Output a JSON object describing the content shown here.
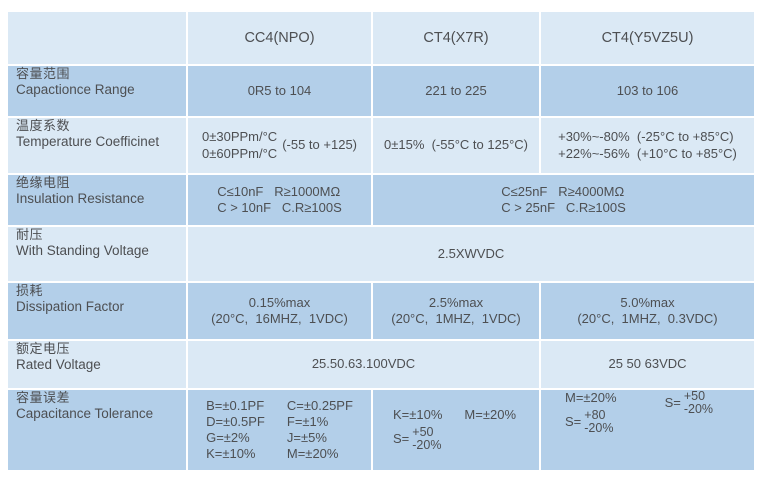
{
  "colors": {
    "row_dark": "#b3cfe9",
    "row_light": "#dbe9f5",
    "text": "#4d4f52",
    "background": "#ffffff"
  },
  "header": {
    "corner": "",
    "cc4": "CC4(NPO)",
    "x7r": "CT4(X7R)",
    "y5v": "CT4(Y5VZ5U)"
  },
  "rows": {
    "capacitance_range": {
      "zh": "容量范围",
      "en": "Capactionce Range",
      "cc4": "0R5 to 104",
      "x7r": "221 to 225",
      "y5v": "103 to 106"
    },
    "temperature_coefficient": {
      "zh": "温度系数",
      "en": "Temperature Coefficinet",
      "cc4_line1": "0±30PPm/°C",
      "cc4_line2": "0±60PPm/°C",
      "cc4_range": "(-55 to +125)",
      "x7r": "0±15%  (-55°C to 125°C)",
      "y5v_line1": "+30%~-80%  (-25°C to +85°C)",
      "y5v_line2": "+22%~-56%  (+10°C to +85°C)"
    },
    "insulation_resistance": {
      "zh": "绝缘电阻",
      "en": "Insulation Resistance",
      "cc4_line1": "C≤10nF   R≥1000MΩ",
      "cc4_line2": "C > 10nF   C.R≥100S",
      "merged_line1": "C≤25nF   R≥4000MΩ",
      "merged_line2": "C > 25nF   C.R≥100S"
    },
    "withstanding_voltage": {
      "zh": "耐压",
      "en": "With Standing Voltage",
      "value": "2.5XWVDC"
    },
    "dissipation_factor": {
      "zh": "损耗",
      "en": "Dissipation Factor",
      "cc4_line1": "0.15%max",
      "cc4_line2": "(20°C,  16MHZ,  1VDC)",
      "x7r_line1": "2.5%max",
      "x7r_line2": "(20°C,  1MHZ,  1VDC)",
      "y5v_line1": "5.0%max",
      "y5v_line2": "(20°C,  1MHZ,  0.3VDC)"
    },
    "rated_voltage": {
      "zh": "额定电压",
      "en": "Rated Voltage",
      "merged": "25.50.63.100VDC",
      "y5v": "25 50 63VDC"
    },
    "capacitance_tolerance": {
      "zh": "容量误差",
      "en": "Capacitance Tolerance",
      "cc4": [
        "B=±0.1PF",
        "C=±0.25PF",
        "D=±0.5PF",
        "F=±1%",
        "G=±2%",
        "J=±5%",
        "K=±10%",
        "M=±20%"
      ],
      "x7r": {
        "k": "K=±10%",
        "m": "M=±20%",
        "s_prefix": "S=",
        "s_top": "+50",
        "s_bottom": "-20%"
      },
      "y5v": {
        "m": "M=±20%",
        "s1_prefix": "S=",
        "s1_top": "+80",
        "s1_bottom": "-20%",
        "s2_prefix": "S=",
        "s2_top": "+50",
        "s2_bottom": "-20%"
      }
    }
  }
}
